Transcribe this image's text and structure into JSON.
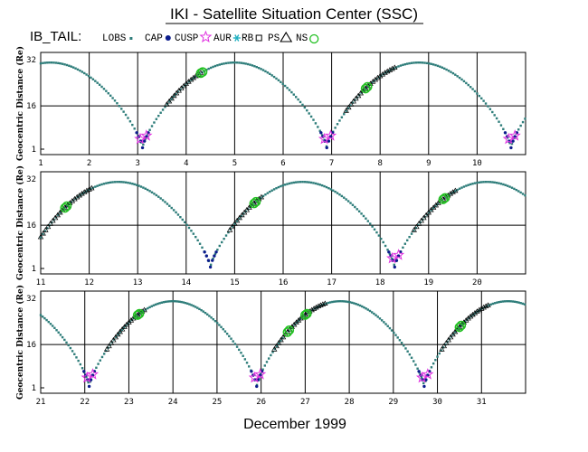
{
  "title": "IKI - Satellite Situation Center (SSC)",
  "satellite": "IB_TAIL:",
  "legend": [
    {
      "label": "LOBS",
      "marker": "small-square",
      "color": "#2e7d7a"
    },
    {
      "label": "CAP",
      "marker": "filled-dot",
      "color": "#0b1c8c"
    },
    {
      "label": "CUSP",
      "marker": "star",
      "color": "#e030e0"
    },
    {
      "label": "AUR",
      "marker": "asterisk",
      "color": "#20b0c0"
    },
    {
      "label": "RB",
      "marker": "open-square",
      "color": "#000000"
    },
    {
      "label": "PS",
      "marker": "open-triangle",
      "color": "#000000"
    },
    {
      "label": "NS",
      "marker": "open-circle",
      "color": "#22c022"
    }
  ],
  "xlabel": "December    1999",
  "colors": {
    "orbit": "#2e7d7a",
    "cap": "#0b1c8c",
    "cusp": "#e030e0",
    "aur": "#20b0c0",
    "ns": "#22c022",
    "ps": "#000000"
  },
  "chart_data": [
    {
      "type": "scatter",
      "ylabel": "Geocentric Distance  (Re)",
      "xlim": [
        1,
        11
      ],
      "ylim": [
        1,
        32
      ],
      "yticks": [
        1,
        16,
        32
      ],
      "xticks": [
        1,
        2,
        3,
        4,
        5,
        6,
        7,
        8,
        9,
        10
      ],
      "perigees": [
        3.1,
        6.9,
        10.7
      ],
      "apogees": [
        5.0,
        8.8
      ],
      "apogee_re": 31,
      "outbound_plasma_sheet": [
        [
          3.6,
          4.3
        ],
        [
          7.3,
          8.3
        ]
      ],
      "cusp_crossings": [
        3.1,
        6.9,
        10.7
      ],
      "ns_crossings": [
        4.3,
        7.7
      ]
    },
    {
      "type": "scatter",
      "ylabel": "Geocentric Distance  (Re)",
      "xlim": [
        11,
        21
      ],
      "ylim": [
        1,
        32
      ],
      "yticks": [
        1,
        16,
        32
      ],
      "xticks": [
        11,
        12,
        13,
        14,
        15,
        16,
        17,
        18,
        19,
        20
      ],
      "perigees": [
        14.5,
        18.3
      ],
      "apogees": [
        12.6,
        16.4,
        20.2
      ],
      "apogee_re": 31,
      "outbound_plasma_sheet": [
        [
          11.0,
          12.1
        ],
        [
          14.9,
          15.6
        ],
        [
          18.7,
          19.6
        ]
      ],
      "cusp_crossings": [
        18.3
      ],
      "ns_crossings": [
        11.5,
        15.4,
        19.3
      ]
    },
    {
      "type": "scatter",
      "ylabel": "Geocentric Distance  (Re)",
      "xlim": [
        21,
        32
      ],
      "ylim": [
        1,
        32
      ],
      "yticks": [
        1,
        16,
        32
      ],
      "xticks": [
        21,
        22,
        23,
        24,
        25,
        26,
        27,
        28,
        29,
        30,
        31
      ],
      "perigees": [
        22.1,
        25.9,
        29.7
      ],
      "apogees": [
        24.0,
        27.8,
        31.6
      ],
      "apogee_re": 31,
      "outbound_plasma_sheet": [
        [
          22.5,
          23.4
        ],
        [
          26.3,
          27.5
        ],
        [
          30.1,
          31.2
        ]
      ],
      "cusp_crossings": [
        22.1,
        25.9,
        29.7
      ],
      "ns_crossings": [
        23.2,
        26.6,
        27.0,
        30.5
      ]
    }
  ]
}
